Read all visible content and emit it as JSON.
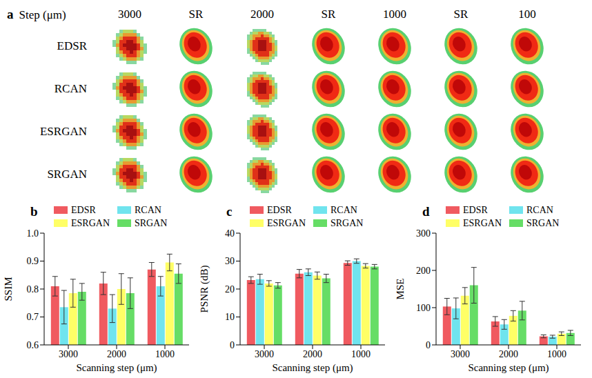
{
  "panel_a": {
    "label": "a",
    "header": "Step (μm)",
    "columns": [
      "3000",
      "SR",
      "2000",
      "SR",
      "1000",
      "SR",
      "100"
    ],
    "rows": [
      "EDSR",
      "RCAN",
      "ESRGAN",
      "SRGAN"
    ]
  },
  "chart_data": [
    {
      "type": "bar",
      "panel": "b",
      "x_label": "Scanning step (μm)",
      "y_label": "SSIM",
      "categories": [
        "3000",
        "2000",
        "1000"
      ],
      "ylim": [
        0.6,
        1
      ],
      "yticks": [
        0.6,
        0.7,
        0.8,
        0.9,
        {
          "value": 1,
          "label": "1.0"
        }
      ],
      "grid": false,
      "legend": "top",
      "series": [
        {
          "name": "EDSR",
          "color": "#f05a60",
          "values": [
            0.81,
            0.82,
            0.87
          ],
          "errors": [
            0.035,
            0.04,
            0.025
          ]
        },
        {
          "name": "RCAN",
          "color": "#70e4ee",
          "values": [
            0.735,
            0.73,
            0.81
          ],
          "errors": [
            0.06,
            0.05,
            0.035
          ]
        },
        {
          "name": "ESRGAN",
          "color": "#ffff66",
          "values": [
            0.785,
            0.8,
            0.895
          ],
          "errors": [
            0.05,
            0.055,
            0.03
          ]
        },
        {
          "name": "SRGAN",
          "color": "#66dd66",
          "values": [
            0.79,
            0.785,
            0.855
          ],
          "errors": [
            0.03,
            0.055,
            0.035
          ]
        }
      ]
    },
    {
      "type": "bar",
      "panel": "c",
      "x_label": "Scanning step (μm)",
      "y_label": "PSNR (dB)",
      "categories": [
        "3000",
        "2000",
        "1000"
      ],
      "ylim": [
        0,
        40
      ],
      "yticks": [
        0,
        10,
        20,
        30,
        40
      ],
      "grid": false,
      "legend": "top",
      "series": [
        {
          "name": "EDSR",
          "color": "#f05a60",
          "values": [
            23.2,
            25.5,
            29.3
          ],
          "errors": [
            1.2,
            1.5,
            0.8
          ]
        },
        {
          "name": "RCAN",
          "color": "#70e4ee",
          "values": [
            23.5,
            26.0,
            30.0
          ],
          "errors": [
            1.8,
            1.2,
            0.8
          ]
        },
        {
          "name": "ESRGAN",
          "color": "#ffff66",
          "values": [
            22.0,
            24.8,
            28.3
          ],
          "errors": [
            1.0,
            1.3,
            0.8
          ]
        },
        {
          "name": "SRGAN",
          "color": "#66dd66",
          "values": [
            21.3,
            23.8,
            28.0
          ],
          "errors": [
            1.0,
            1.5,
            0.8
          ]
        }
      ]
    },
    {
      "type": "bar",
      "panel": "d",
      "x_label": "Scanning step (μm)",
      "y_label": "MSE",
      "categories": [
        "3000",
        "2000",
        "1000"
      ],
      "ylim": [
        0,
        300
      ],
      "yticks": [
        0,
        100,
        200,
        300
      ],
      "grid": false,
      "legend": "top",
      "series": [
        {
          "name": "EDSR",
          "color": "#f05a60",
          "values": [
            103,
            63,
            23
          ],
          "errors": [
            22,
            13,
            4
          ]
        },
        {
          "name": "RCAN",
          "color": "#70e4ee",
          "values": [
            98,
            55,
            22
          ],
          "errors": [
            28,
            13,
            4
          ]
        },
        {
          "name": "ESRGAN",
          "color": "#ffff66",
          "values": [
            132,
            78,
            30
          ],
          "errors": [
            22,
            14,
            5
          ]
        },
        {
          "name": "SRGAN",
          "color": "#66dd66",
          "values": [
            160,
            92,
            32
          ],
          "errors": [
            48,
            25,
            7
          ]
        }
      ]
    }
  ]
}
